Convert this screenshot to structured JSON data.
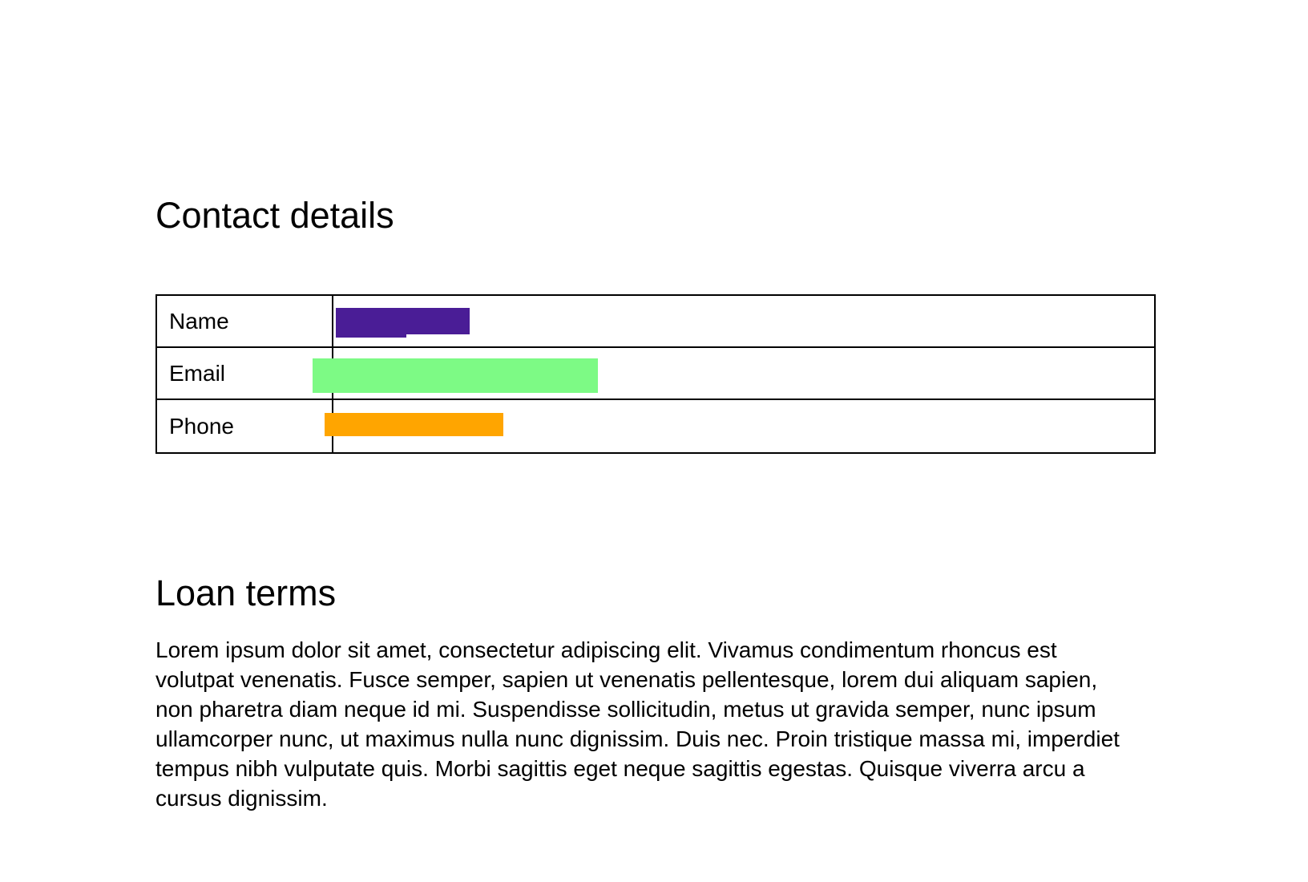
{
  "contact": {
    "heading": "Contact details",
    "rows": [
      {
        "label": "Name",
        "color": "#4A1D96"
      },
      {
        "label": "Email",
        "color": "#7DFA85"
      },
      {
        "label": "Phone",
        "color": "#FFA500"
      }
    ]
  },
  "loan": {
    "heading": "Loan terms",
    "paragraph": "Lorem ipsum dolor sit amet, consectetur adipiscing elit. Vivamus condimentum rhoncus est volutpat venenatis. Fusce semper, sapien ut venenatis pellentesque, lorem dui aliquam sapien, non pharetra diam neque id mi. Suspendisse sollicitudin, metus ut gravida semper, nunc ipsum ullamcorper nunc, ut maximus nulla nunc dignissim. Duis nec. Proin tristique massa mi, imperdiet tempus nibh vulputate quis. Morbi sagittis eget neque sagittis egestas. Quisque viverra arcu a cursus dignissim."
  },
  "colors": {
    "table_border": "#000000",
    "text": "#000000",
    "background": "#ffffff"
  }
}
